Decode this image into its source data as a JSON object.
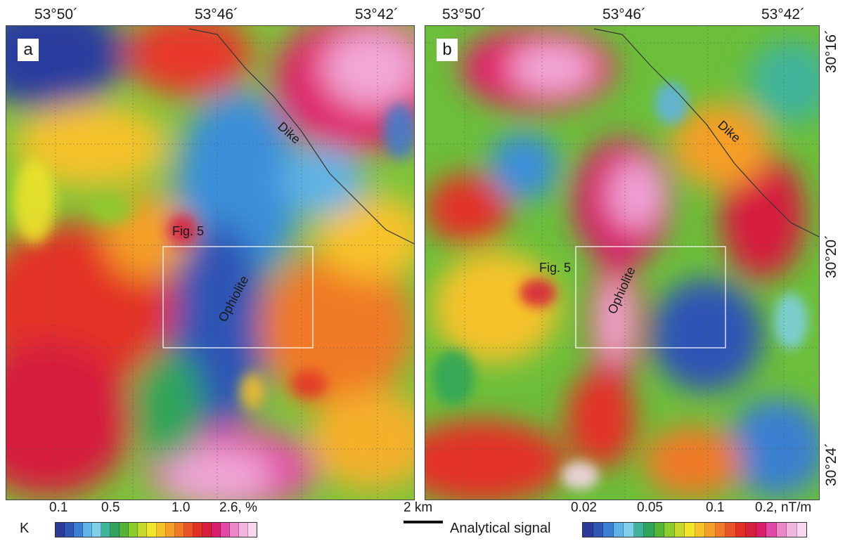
{
  "top_labels": [
    "53°50´",
    "53°46´",
    "53°42´",
    "53°50´",
    "53°46´",
    "53°42´"
  ],
  "right_labels": [
    "30°16´",
    "30°20´",
    "30°24´"
  ],
  "panels": {
    "a": {
      "letter": "a",
      "dike_label": "Dike",
      "fig_label": "Fig. 5",
      "ophiolite_label": "Ophiolite"
    },
    "b": {
      "letter": "b",
      "dike_label": "Dike",
      "fig_label": "Fig. 5",
      "ophiolite_label": "Ophiolite"
    }
  },
  "legend_k": {
    "name": "K",
    "ticks": [
      "0.1",
      "0.5",
      "1.0",
      "2.6, %"
    ],
    "colors": [
      "#2d3a9a",
      "#2f55b5",
      "#3a7fd0",
      "#5fb3e6",
      "#7fd0e8",
      "#3fb49a",
      "#2fa45a",
      "#55b33a",
      "#8ccc2d",
      "#c6d82b",
      "#f2e52c",
      "#f8c22a",
      "#f59f28",
      "#f07a27",
      "#ea5426",
      "#e33026",
      "#d61f3c",
      "#d81e6b",
      "#e248a5",
      "#ec86c8",
      "#f3b6df",
      "#f8d8ee"
    ]
  },
  "legend_as": {
    "name": "Analytical signal",
    "ticks": [
      "0.02",
      "0.05",
      "0.1",
      "0.2, nT/m"
    ],
    "colors": [
      "#2d3a9a",
      "#2f55b5",
      "#3a7fd0",
      "#5fb3e6",
      "#7fd0e8",
      "#3fb49a",
      "#2fa45a",
      "#55b33a",
      "#8ccc2d",
      "#c6d82b",
      "#f2e52c",
      "#f8c22a",
      "#f59f28",
      "#f07a27",
      "#ea5426",
      "#e33026",
      "#d61f3c",
      "#d81e6b",
      "#e248a5",
      "#ec86c8",
      "#f3b6df",
      "#f8d8ee"
    ]
  },
  "scale": {
    "label": "2 km"
  }
}
